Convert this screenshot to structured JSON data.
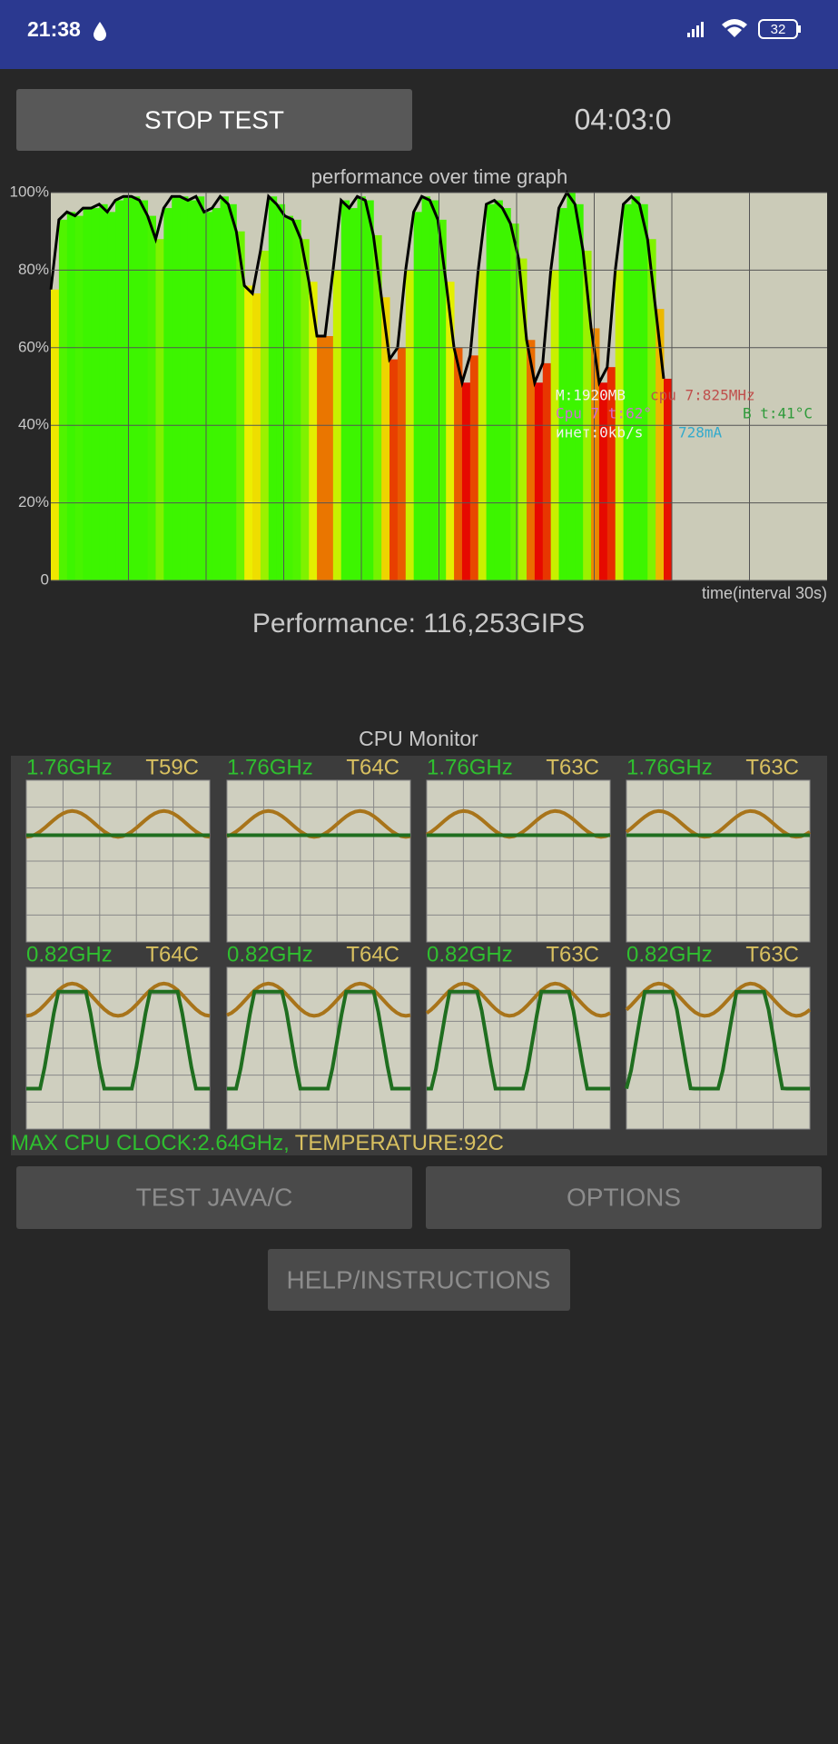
{
  "status_bar": {
    "time": "21:38",
    "battery": "32"
  },
  "controls": {
    "stop_button": "STOP TEST",
    "timer": "04:03:0"
  },
  "performance_graph": {
    "type": "area",
    "title": "performance over time graph",
    "x_label": "time(interval 30s)",
    "ylim": [
      0,
      100
    ],
    "yticks": [
      0,
      {
        "value": 20,
        "label": "20%"
      },
      {
        "value": 40,
        "label": "40%"
      },
      {
        "value": 60,
        "label": "60%"
      },
      {
        "value": 80,
        "label": "80%"
      },
      {
        "value": 100,
        "label": "100%"
      }
    ],
    "grid": true,
    "values": [
      75,
      93,
      95,
      94,
      96,
      96,
      97,
      95,
      98,
      99,
      99,
      98,
      94,
      88,
      96,
      99,
      99,
      98,
      99,
      95,
      96,
      99,
      97,
      90,
      76,
      74,
      85,
      99,
      97,
      94,
      93,
      88,
      77,
      63,
      63,
      80,
      98,
      96,
      99,
      98,
      89,
      73,
      57,
      60,
      80,
      95,
      99,
      98,
      93,
      77,
      60,
      51,
      58,
      80,
      97,
      98,
      96,
      92,
      83,
      62,
      51,
      56,
      80,
      96,
      100,
      97,
      85,
      65,
      51,
      55,
      80,
      97,
      99,
      97,
      88,
      70,
      52
    ]
  },
  "overlay": {
    "memory": "M:1920MB",
    "cpu_clock": "cpu 7:825MHz",
    "cpu_temp": "Cpu 7 t:62°",
    "battery_temp": "B t:41°C",
    "network": "инет:0kb/s",
    "current": "728mA"
  },
  "performance": "Performance: 116,253GIPS",
  "cpu_monitor": {
    "title": "CPU Monitor",
    "cores": [
      {
        "freq": "1.76GHz",
        "temp": "T59C"
      },
      {
        "freq": "1.76GHz",
        "temp": "T64C"
      },
      {
        "freq": "1.76GHz",
        "temp": "T63C"
      },
      {
        "freq": "1.76GHz",
        "temp": "T63C"
      },
      {
        "freq": "0.82GHz",
        "temp": "T64C"
      },
      {
        "freq": "0.82GHz",
        "temp": "T64C"
      },
      {
        "freq": "0.82GHz",
        "temp": "T63C"
      },
      {
        "freq": "0.82GHz",
        "temp": "T63C"
      }
    ],
    "max_clock": "MAX CPU CLOCK:2.64GHz,",
    "temperature": "TEMPERATURE:92C"
  },
  "buttons": {
    "test": "TEST JAVA/C",
    "options": "OPTIONS",
    "help": "HELP/INSTRUCTIONS"
  }
}
